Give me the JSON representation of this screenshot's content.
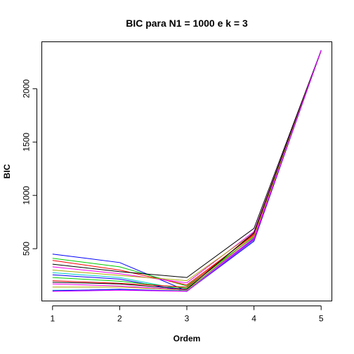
{
  "chart_data": {
    "type": "line",
    "title": "BIC para N1 = 1000 e k = 3",
    "xlabel": "Ordem",
    "ylabel": "BIC",
    "x": [
      1,
      2,
      3,
      4,
      5
    ],
    "xticks": [
      "1",
      "2",
      "3",
      "4",
      "5"
    ],
    "yticks": [
      500,
      1000,
      1500,
      2000
    ],
    "ytick_labels": [
      "500",
      "1000",
      "1500",
      "2000"
    ],
    "xlim": [
      0.84,
      5.16
    ],
    "ylim": [
      10,
      2440
    ],
    "grid": false,
    "series": [
      {
        "color": "#0000ff",
        "values": [
          450,
          370,
          105,
          580,
          2360
        ]
      },
      {
        "color": "#00cc00",
        "values": [
          410,
          330,
          150,
          610,
          2355
        ]
      },
      {
        "color": "#ff0000",
        "values": [
          390,
          300,
          160,
          630,
          2355
        ]
      },
      {
        "color": "#000000",
        "values": [
          355,
          285,
          230,
          690,
          2360
        ]
      },
      {
        "color": "#ff00ff",
        "values": [
          330,
          265,
          180,
          660,
          2355
        ]
      },
      {
        "color": "#aaaa00",
        "values": [
          300,
          250,
          200,
          645,
          2355
        ]
      },
      {
        "color": "#00cccc",
        "values": [
          275,
          230,
          110,
          600,
          2355
        ]
      },
      {
        "color": "#0000ff",
        "values": [
          255,
          215,
          100,
          590,
          2360
        ]
      },
      {
        "color": "#00cc00",
        "values": [
          230,
          195,
          130,
          620,
          2355
        ]
      },
      {
        "color": "#ff0000",
        "values": [
          200,
          175,
          140,
          640,
          2355
        ]
      },
      {
        "color": "#000000",
        "values": [
          185,
          170,
          120,
          650,
          2355
        ]
      },
      {
        "color": "#ff00ff",
        "values": [
          170,
          150,
          115,
          600,
          2355
        ]
      },
      {
        "color": "#aaaa00",
        "values": [
          140,
          140,
          110,
          620,
          2355
        ]
      },
      {
        "color": "#00cccc",
        "values": [
          110,
          115,
          105,
          580,
          2360
        ]
      },
      {
        "color": "#0000ff",
        "values": [
          105,
          120,
          100,
          570,
          2360
        ]
      },
      {
        "color": "#ff00ff",
        "values": [
          100,
          110,
          100,
          585,
          2360
        ]
      }
    ]
  }
}
